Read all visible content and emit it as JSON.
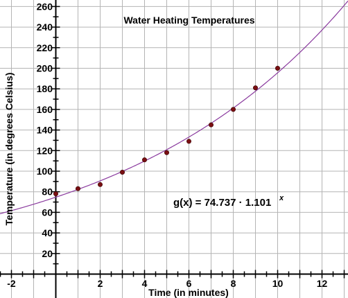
{
  "chart_data": {
    "type": "scatter",
    "title": "Water Heating Temperatures",
    "xlabel": "Time (in minutes)",
    "ylabel": "Temperature (in degrees Celsius)",
    "xlim": [
      -3,
      13
    ],
    "ylim": [
      -15,
      265
    ],
    "x_tick_labels": [
      "-2",
      "2",
      "4",
      "6",
      "8",
      "10",
      "12"
    ],
    "y_tick_labels": [
      "20",
      "40",
      "60",
      "80",
      "100",
      "120",
      "140",
      "160",
      "180",
      "200",
      "220",
      "240",
      "260"
    ],
    "grid": true,
    "points": {
      "x": [
        0,
        1,
        2,
        3,
        4,
        5,
        6,
        7,
        8,
        9,
        10
      ],
      "y": [
        78,
        83,
        87,
        99,
        111,
        118,
        129,
        145,
        160,
        181,
        200
      ]
    },
    "fit": {
      "a": 74.737,
      "b": 1.101,
      "label_prefix": "g(x) = 74.737 · 1.101",
      "label_exponent": "x"
    },
    "colors": {
      "point": "#7a0f12",
      "curve": "#8a3a9e",
      "grid": "#b4b4b4",
      "axis": "#000000"
    }
  }
}
